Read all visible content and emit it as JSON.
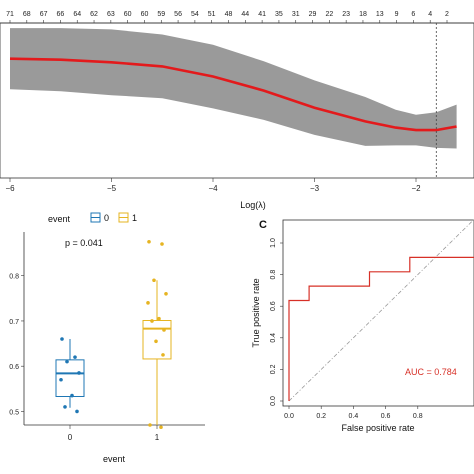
{
  "chart_data": [
    {
      "type": "line",
      "xlabel": "Log(λ)",
      "ylabel": "",
      "xlim": [
        -6,
        -1.6
      ],
      "x_ticks": [
        "-6",
        "-5",
        "-4",
        "-3",
        "-2"
      ],
      "top_axis_counts": [
        "71",
        "68",
        "67",
        "66",
        "64",
        "62",
        "63",
        "60",
        "60",
        "59",
        "56",
        "54",
        "51",
        "48",
        "44",
        "41",
        "35",
        "31",
        "29",
        "22",
        "23",
        "18",
        "13",
        "9",
        "6",
        "4",
        "2"
      ],
      "lambda_min": -1.8,
      "series": [
        {
          "x": [
            -6,
            -5.5,
            -5,
            -4.5,
            -4,
            -3.5,
            -3,
            -2.5,
            -2.2,
            -2,
            -1.8,
            -1.6
          ],
          "y": [
            0.88,
            0.876,
            0.866,
            0.85,
            0.81,
            0.755,
            0.688,
            0.634,
            0.61,
            0.6,
            0.6,
            0.614
          ],
          "upper": [
            1.0,
            1.0,
            0.995,
            0.975,
            0.935,
            0.87,
            0.795,
            0.73,
            0.68,
            0.66,
            0.67,
            0.7
          ],
          "lower": [
            0.76,
            0.752,
            0.737,
            0.725,
            0.685,
            0.64,
            0.581,
            0.538,
            0.54,
            0.54,
            0.53,
            0.528
          ]
        }
      ],
      "colors": {
        "line": "#e31a1c",
        "band": "#999999",
        "vline": "#444444"
      }
    },
    {
      "type": "box",
      "xlabel": "event",
      "ylabel": "",
      "categories": [
        "0",
        "1"
      ],
      "legend": {
        "title": "event",
        "entries": [
          "0",
          "1"
        ],
        "position": "top"
      },
      "annotation": "p = 0.041",
      "y_ticks": [
        "0.5",
        "0.6",
        "0.7",
        "0.8"
      ],
      "ylim": [
        0.47,
        0.89
      ],
      "boxes": [
        {
          "name": "0",
          "q1": 0.533,
          "median": 0.584,
          "q3": 0.614,
          "whisker_low": 0.508,
          "whisker_high": 0.66,
          "points": [
            0.66,
            0.62,
            0.61,
            0.585,
            0.57,
            0.535,
            0.51,
            0.5
          ]
        },
        {
          "name": "1",
          "q1": 0.616,
          "median": 0.683,
          "q3": 0.701,
          "whisker_low": 0.47,
          "whisker_high": 0.79,
          "points": [
            0.875,
            0.87,
            0.79,
            0.76,
            0.74,
            0.705,
            0.7,
            0.68,
            0.655,
            0.625,
            0.47,
            0.465
          ]
        }
      ],
      "colors": {
        "0": "#1f77b4",
        "1": "#e6b422"
      }
    },
    {
      "type": "line",
      "panel_label": "C",
      "xlabel": "False positive rate",
      "ylabel": "True positive rate",
      "xlim": [
        0,
        1
      ],
      "ylim": [
        0,
        1
      ],
      "x_ticks": [
        "0.0",
        "0.2",
        "0.4",
        "0.6",
        "0.8"
      ],
      "y_ticks": [
        "0.0",
        "0.2",
        "0.4",
        "0.6",
        "0.8",
        "1.0"
      ],
      "annotation": "AUC = 0.784",
      "series": [
        {
          "x": [
            0,
            0,
            0.125,
            0.125,
            0.5,
            0.5,
            0.75,
            0.75,
            1.0
          ],
          "y": [
            0,
            0.636,
            0.636,
            0.727,
            0.727,
            0.818,
            0.818,
            0.909,
            0.909
          ]
        }
      ],
      "colors": {
        "roc": "#d73027",
        "diag": "#999999"
      }
    }
  ]
}
